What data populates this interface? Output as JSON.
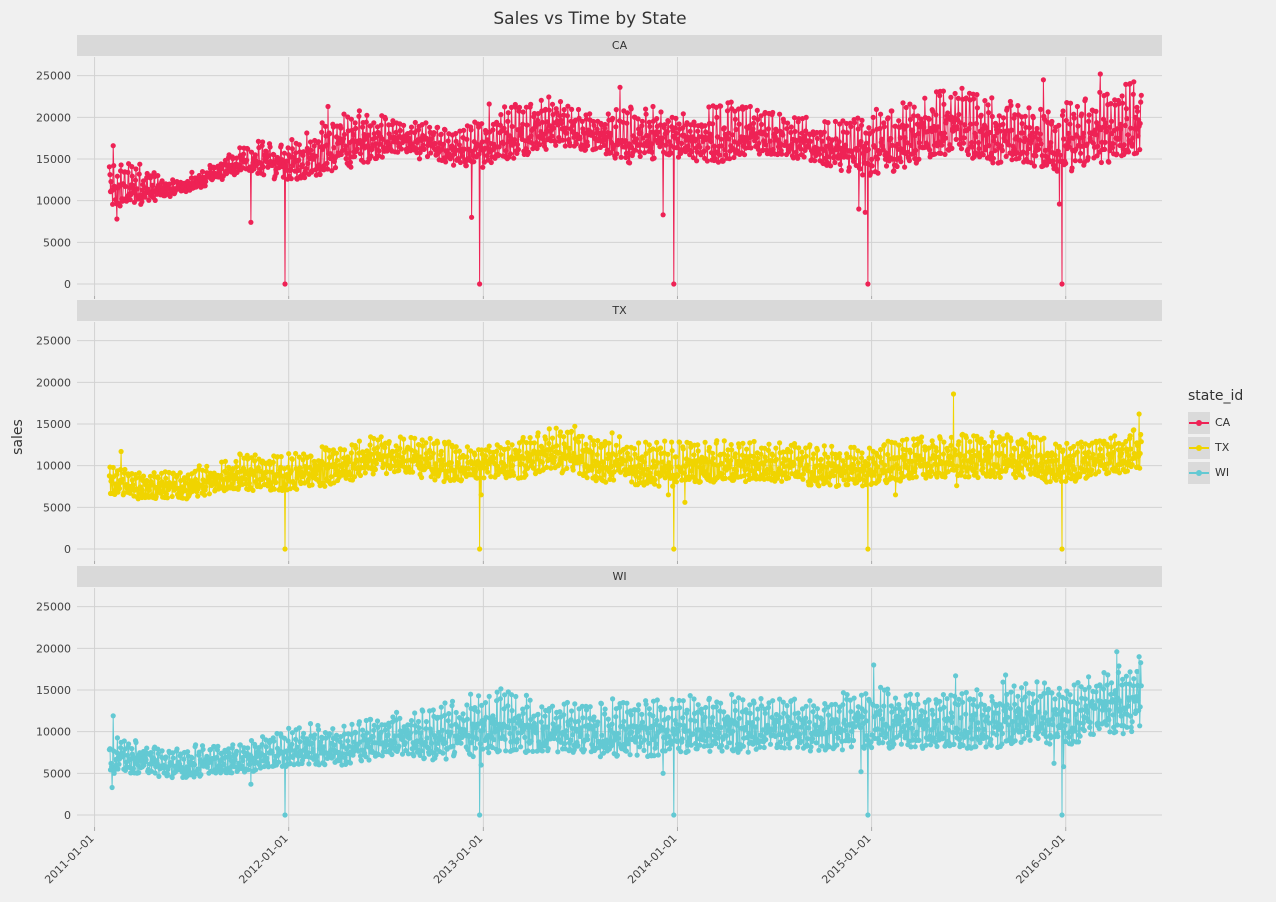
{
  "chart_data": {
    "type": "line",
    "title": "Sales vs Time by State",
    "ylabel": "sales",
    "xlabel": "",
    "x_ticks": [
      "2011-01-01",
      "2012-01-01",
      "2013-01-01",
      "2014-01-01",
      "2015-01-01",
      "2016-01-01"
    ],
    "y_ticks": [
      0,
      5000,
      10000,
      15000,
      20000,
      25000
    ],
    "ylim": [
      0,
      27000
    ],
    "xlim": [
      "2010-11-29",
      "2016-06-30"
    ],
    "date_range": [
      "2011-01-29",
      "2016-05-22"
    ],
    "grid": true,
    "legend": {
      "title": "state_id",
      "placement": "right",
      "entries": [
        "CA",
        "TX",
        "WI"
      ]
    },
    "christmas_zero_dates": [
      "2011-12-25",
      "2012-12-25",
      "2013-12-25",
      "2014-12-25",
      "2015-12-25"
    ],
    "facets": [
      {
        "name": "CA",
        "color": "#ee2255",
        "monthly_min": [
          9000,
          9500,
          10000,
          10500,
          11000,
          11500,
          12500,
          13000,
          13500,
          13000,
          12500,
          12500,
          13000,
          13500,
          14000,
          14500,
          15000,
          15500,
          15500,
          15000,
          14500,
          14000,
          14000,
          14500,
          15000,
          15500,
          16000,
          16500,
          16500,
          16000,
          15500,
          15000,
          14500,
          15000,
          15500,
          15000,
          14500,
          14500,
          15000,
          15500,
          15500,
          15500,
          15000,
          14500,
          14000,
          13500,
          13000,
          13000,
          13500,
          14000,
          15000,
          15500,
          15500,
          15000,
          14500,
          14500,
          14500,
          14000,
          13500,
          13500,
          14000,
          14500,
          15000,
          15500,
          15500
        ],
        "monthly_max": [
          15000,
          14500,
          13500,
          12500,
          12500,
          13500,
          14500,
          15500,
          16500,
          17500,
          17000,
          17500,
          18500,
          19500,
          20500,
          21000,
          20500,
          20000,
          19500,
          19500,
          19000,
          18500,
          19500,
          20500,
          21500,
          22000,
          22500,
          22500,
          21500,
          20500,
          20500,
          21000,
          21500,
          21500,
          21000,
          20500,
          20500,
          21500,
          22000,
          21500,
          21000,
          20500,
          20000,
          19500,
          19500,
          20000,
          20500,
          21000,
          21500,
          22500,
          23000,
          23500,
          23500,
          23000,
          22500,
          22000,
          21500,
          21000,
          21000,
          22000,
          23000,
          23500,
          24000,
          24500,
          24500
        ],
        "outliers": [
          [
            "2011-02-05",
            16600
          ],
          [
            "2011-02-12",
            7800
          ],
          [
            "2011-10-22",
            7400
          ],
          [
            "2012-03-15",
            21300
          ],
          [
            "2012-12-10",
            8000
          ],
          [
            "2013-01-12",
            21600
          ],
          [
            "2013-09-15",
            23600
          ],
          [
            "2013-12-05",
            8300
          ],
          [
            "2014-12-08",
            9000
          ],
          [
            "2014-12-20",
            8600
          ],
          [
            "2015-11-20",
            24500
          ],
          [
            "2015-12-20",
            9600
          ],
          [
            "2016-03-06",
            25200
          ]
        ]
      },
      {
        "name": "TX",
        "color": "#f0d400",
        "monthly_min": [
          6500,
          6000,
          6000,
          6000,
          6000,
          6000,
          6500,
          7000,
          7000,
          7000,
          7000,
          7000,
          7500,
          7500,
          8000,
          8500,
          9000,
          9000,
          9000,
          8500,
          8000,
          8000,
          8000,
          8500,
          8500,
          8500,
          9000,
          9000,
          9000,
          8500,
          8000,
          8000,
          7500,
          7500,
          7500,
          8000,
          8000,
          8000,
          8000,
          8000,
          8000,
          8000,
          8000,
          7500,
          7500,
          7500,
          7500,
          7500,
          8000,
          8500,
          8500,
          8500,
          8500,
          8500,
          8500,
          8500,
          8500,
          8000,
          8000,
          8000,
          8500,
          9000,
          9000,
          9500,
          9500
        ],
        "monthly_max": [
          10000,
          9500,
          9500,
          9500,
          9500,
          10000,
          10500,
          11000,
          11500,
          11500,
          11500,
          11500,
          12000,
          12500,
          12500,
          13000,
          13500,
          13500,
          13500,
          13500,
          13000,
          12500,
          12500,
          13000,
          13000,
          13500,
          14000,
          14500,
          15000,
          14500,
          14000,
          13500,
          13000,
          13000,
          13000,
          13000,
          13000,
          13000,
          13000,
          13000,
          13000,
          13000,
          13000,
          12500,
          12500,
          12500,
          12500,
          13000,
          13500,
          13500,
          13500,
          13500,
          14000,
          14000,
          14000,
          14000,
          14000,
          13500,
          13000,
          13000,
          13500,
          14000,
          14000,
          14500,
          14500
        ],
        "outliers": [
          [
            "2011-02-20",
            11700
          ],
          [
            "2012-12-28",
            6500
          ],
          [
            "2013-12-15",
            6500
          ],
          [
            "2014-01-15",
            5600
          ],
          [
            "2015-02-15",
            6500
          ],
          [
            "2015-06-04",
            18600
          ],
          [
            "2015-06-10",
            7600
          ],
          [
            "2016-05-18",
            16200
          ]
        ]
      },
      {
        "name": "WI",
        "color": "#63c9d3",
        "monthly_min": [
          5000,
          5000,
          5000,
          4500,
          4500,
          4500,
          5000,
          5000,
          5000,
          5500,
          5500,
          6000,
          6000,
          6000,
          6000,
          6500,
          7000,
          7000,
          7000,
          6500,
          6500,
          7000,
          7000,
          7000,
          7500,
          7500,
          7500,
          7500,
          7500,
          7500,
          7000,
          7000,
          7000,
          7000,
          7500,
          7500,
          7500,
          7500,
          7500,
          7500,
          8000,
          8000,
          8000,
          7500,
          7500,
          7500,
          8000,
          8000,
          8000,
          8000,
          8000,
          8000,
          8000,
          8000,
          8000,
          8500,
          8500,
          8500,
          8500,
          8500,
          9000,
          9500,
          9500,
          10000,
          10000
        ],
        "monthly_max": [
          9500,
          9000,
          8500,
          8000,
          8000,
          8500,
          8500,
          9000,
          9000,
          9500,
          10000,
          10500,
          11000,
          11000,
          11000,
          11500,
          12000,
          12500,
          12500,
          13000,
          13500,
          14000,
          14500,
          15000,
          15500,
          14500,
          13500,
          13500,
          13500,
          13500,
          13500,
          14000,
          14000,
          14000,
          14000,
          14500,
          14500,
          14500,
          14500,
          14500,
          14000,
          14000,
          14000,
          14000,
          14500,
          15000,
          15500,
          15500,
          15000,
          14500,
          14500,
          14500,
          15000,
          15500,
          16000,
          16000,
          16000,
          16000,
          16000,
          16500,
          17000,
          17500,
          18000,
          18500,
          19000
        ],
        "outliers": [
          [
            "2011-02-05",
            11900
          ],
          [
            "2011-02-03",
            3300
          ],
          [
            "2011-10-22",
            3700
          ],
          [
            "2012-12-28",
            6000
          ],
          [
            "2013-12-05",
            5000
          ],
          [
            "2014-12-12",
            5200
          ],
          [
            "2015-01-05",
            18000
          ],
          [
            "2015-06-08",
            16700
          ],
          [
            "2015-09-10",
            16800
          ],
          [
            "2015-12-10",
            6200
          ],
          [
            "2015-12-28",
            5800
          ],
          [
            "2016-04-06",
            19600
          ],
          [
            "2016-05-18",
            19000
          ]
        ]
      }
    ]
  }
}
